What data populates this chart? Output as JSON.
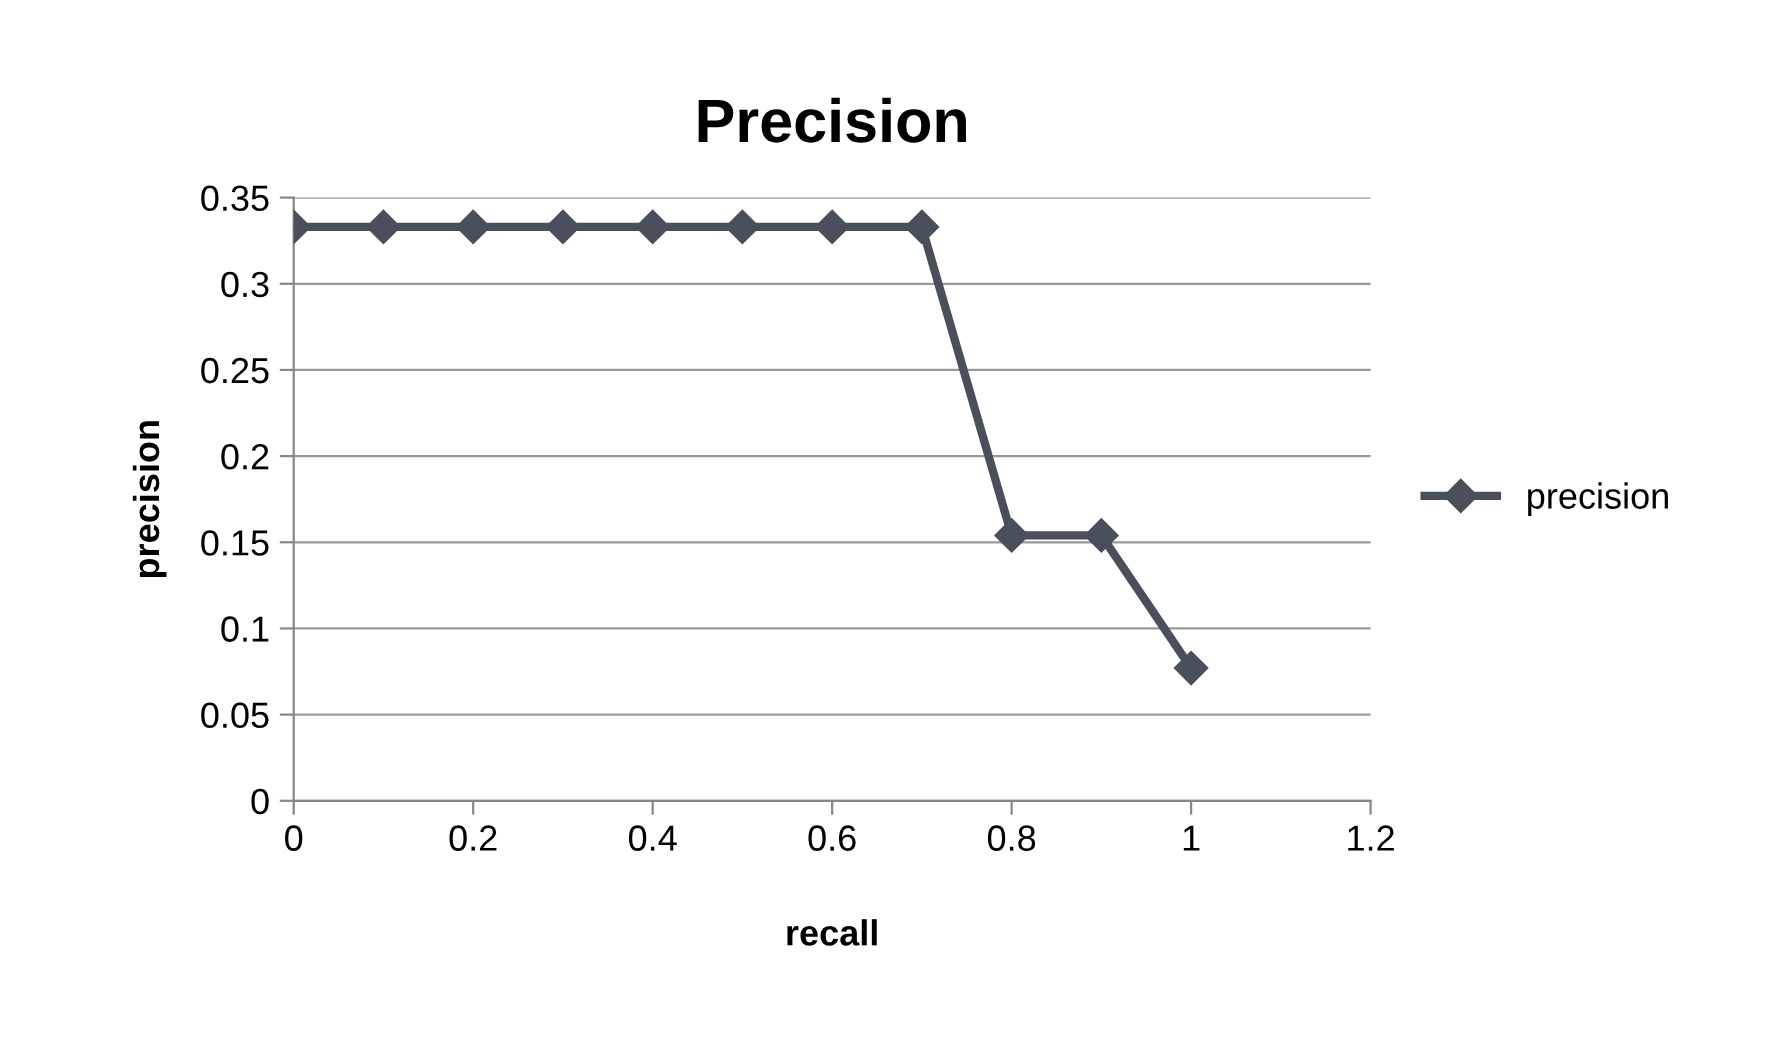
{
  "chart_data": {
    "type": "line",
    "title": "Precision",
    "xlabel": "recall",
    "ylabel": "precision",
    "x": [
      0,
      0.1,
      0.2,
      0.3,
      0.4,
      0.5,
      0.6,
      0.7,
      0.8,
      0.9,
      1
    ],
    "series": [
      {
        "name": "precision",
        "color": "#4a4f5c",
        "values": [
          0.333,
          0.333,
          0.333,
          0.333,
          0.333,
          0.333,
          0.333,
          0.333,
          0.154,
          0.154,
          0.077
        ]
      }
    ],
    "xlim": [
      0,
      1.2
    ],
    "xticks": [
      0,
      0.2,
      0.4,
      0.6,
      0.8,
      1,
      1.2
    ],
    "ylim": [
      0,
      0.35
    ],
    "yticks": [
      0,
      0.05,
      0.1,
      0.15,
      0.2,
      0.25,
      0.3,
      0.35
    ],
    "grid": "y",
    "legend": "right",
    "marker": "diamond",
    "line_style": "solid"
  }
}
